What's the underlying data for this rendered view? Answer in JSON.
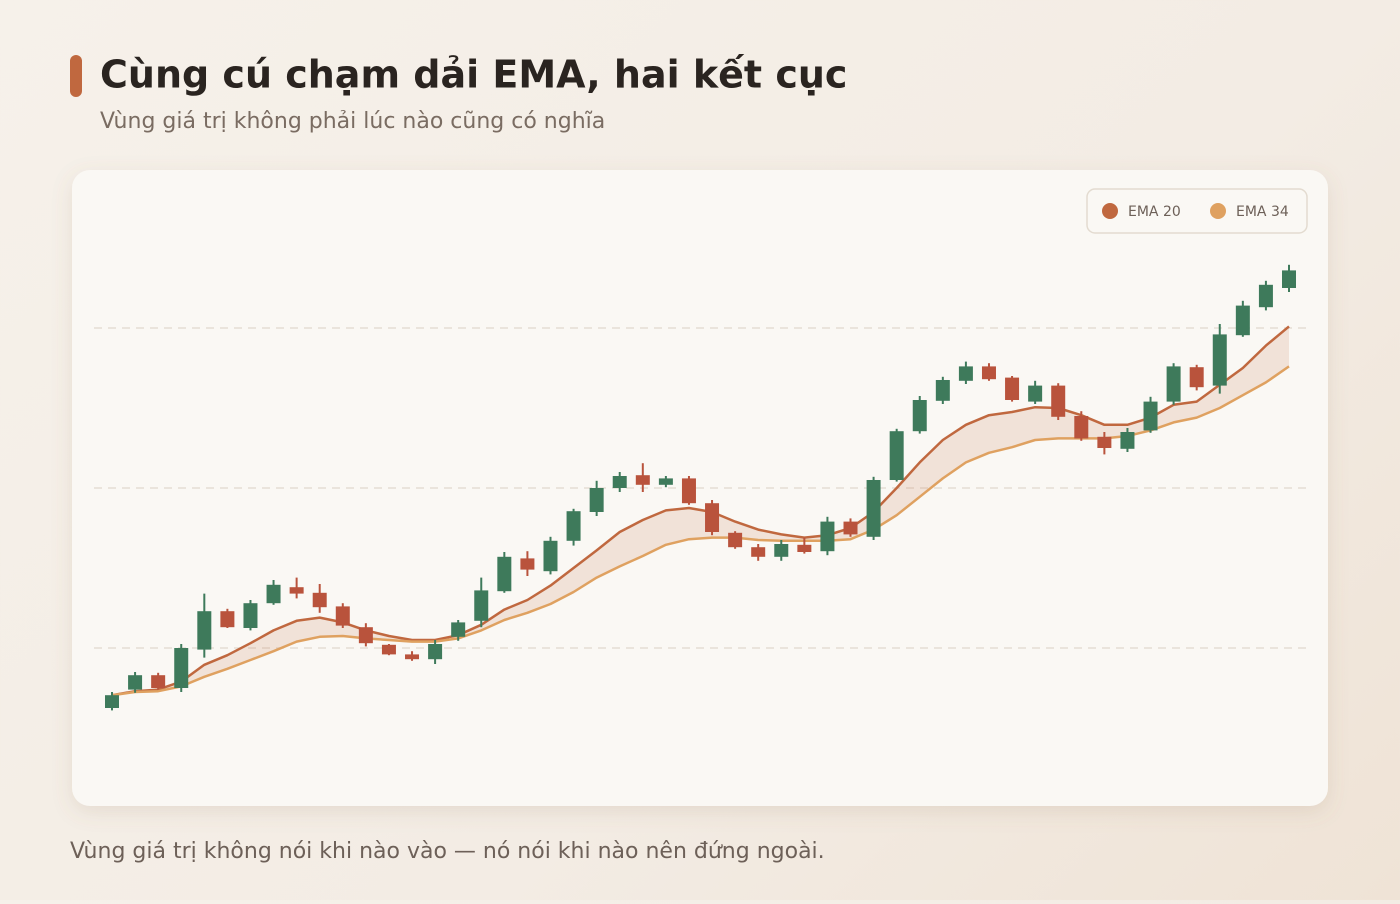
{
  "header": {
    "title": "Cùng cú chạm dải EMA, hai kết cục",
    "subtitle": "Vùng giá trị không phải lúc nào cũng có nghĩa"
  },
  "footnote": "Vùng giá trị không nói khi nào vào — nó nói khi nào nên đứng ngoài.",
  "chart_data": {
    "type": "candlestick",
    "categories": [
      null,
      null,
      null,
      null,
      null,
      null,
      null,
      null,
      null,
      null,
      null,
      null,
      null,
      null,
      null,
      null,
      null,
      null,
      null,
      null,
      null,
      null,
      null,
      null,
      null,
      null,
      null,
      null,
      null,
      null,
      null,
      null,
      null,
      null,
      null,
      null,
      null,
      null,
      null,
      null,
      null,
      null,
      null,
      null,
      null,
      null,
      null,
      null,
      null,
      null,
      null,
      null
    ],
    "open": [
      62.5,
      74,
      83,
      75,
      99,
      123,
      112.5,
      128,
      138,
      134.5,
      126,
      113,
      102,
      96,
      93,
      107,
      117,
      135.5,
      156,
      148,
      167,
      185,
      200,
      208,
      202,
      206,
      190.5,
      172,
      163,
      157,
      164.5,
      160.5,
      179,
      169.5,
      205,
      235.5,
      254.5,
      267,
      276,
      269,
      254,
      264,
      245,
      232,
      224.5,
      236,
      254,
      275.5,
      264,
      295.5,
      313,
      325
    ],
    "high": [
      72.5,
      85,
      84.5,
      102.5,
      134,
      124.5,
      130,
      142.5,
      144,
      140,
      128,
      115.5,
      102.5,
      98,
      105,
      117.5,
      144,
      160,
      160.5,
      169.5,
      187,
      204.5,
      210,
      215.5,
      207.5,
      207.5,
      192.5,
      173,
      165,
      167.5,
      169,
      182,
      181,
      207,
      237,
      257.5,
      269.5,
      279,
      278,
      270,
      267,
      265.5,
      248,
      235,
      237.5,
      257,
      278,
      277,
      302.5,
      317,
      329.5,
      339.5
    ],
    "low": [
      61,
      72,
      74,
      72.5,
      94,
      112.5,
      111,
      127,
      131,
      122,
      112.5,
      101,
      95.5,
      92,
      90,
      104.5,
      113,
      134.5,
      145,
      146,
      164,
      182.5,
      197.5,
      197.5,
      200.5,
      189.5,
      170.5,
      162,
      154.5,
      154.5,
      159,
      158,
      169.5,
      167.5,
      204,
      234,
      252.5,
      265,
      267,
      254,
      252.5,
      242.5,
      229.5,
      221,
      222.5,
      234.5,
      252,
      261,
      259,
      294.5,
      311,
      322.5
    ],
    "close": [
      70.5,
      83,
      75,
      100,
      123,
      113,
      128,
      139.5,
      134,
      125.5,
      114,
      103,
      96,
      93,
      102.5,
      116,
      136,
      157,
      149,
      167,
      185.5,
      200,
      207.5,
      202,
      206,
      190.5,
      172.5,
      163,
      157,
      165,
      160,
      179,
      171,
      205,
      235.5,
      255,
      267.5,
      276,
      268,
      255,
      264,
      244.5,
      231,
      225,
      235,
      254,
      276,
      263,
      296,
      314,
      327,
      336
    ],
    "up_color": "#3e7a5b",
    "down_color": "#b9533c",
    "series": [
      {
        "name": "EMA 20",
        "color": "#c0683f",
        "values": [
          70.5,
          73,
          74,
          79,
          89.5,
          95.5,
          103,
          111,
          117,
          119,
          116,
          111,
          107.5,
          105,
          105,
          108,
          114.5,
          124,
          130,
          139,
          150,
          161,
          172.5,
          180,
          186,
          187.5,
          185,
          179,
          174,
          171,
          169,
          170.5,
          175,
          185,
          200,
          216,
          230,
          239.5,
          245.5,
          247.5,
          250.5,
          250,
          245.5,
          239.5,
          239.5,
          244,
          252,
          254,
          264.5,
          275,
          289,
          301
        ]
      },
      {
        "name": "EMA 34",
        "color": "#dfa160",
        "values": [
          70.5,
          72.5,
          73,
          76,
          82,
          87,
          92.5,
          98,
          104,
          107,
          107.5,
          106,
          105,
          104,
          104,
          106,
          111,
          117.5,
          122,
          127.5,
          135,
          144,
          151,
          157.5,
          164.5,
          168,
          169,
          169,
          167.5,
          167,
          167,
          167,
          168,
          174,
          183,
          194.5,
          206,
          216,
          222,
          225.5,
          230,
          231,
          231,
          231,
          232.5,
          236,
          241,
          244,
          250,
          258,
          266,
          276
        ]
      }
    ],
    "ylim": [
      50,
      350
    ],
    "yticks": [
      100,
      200,
      300
    ],
    "grid": true,
    "legend": "top-right"
  }
}
